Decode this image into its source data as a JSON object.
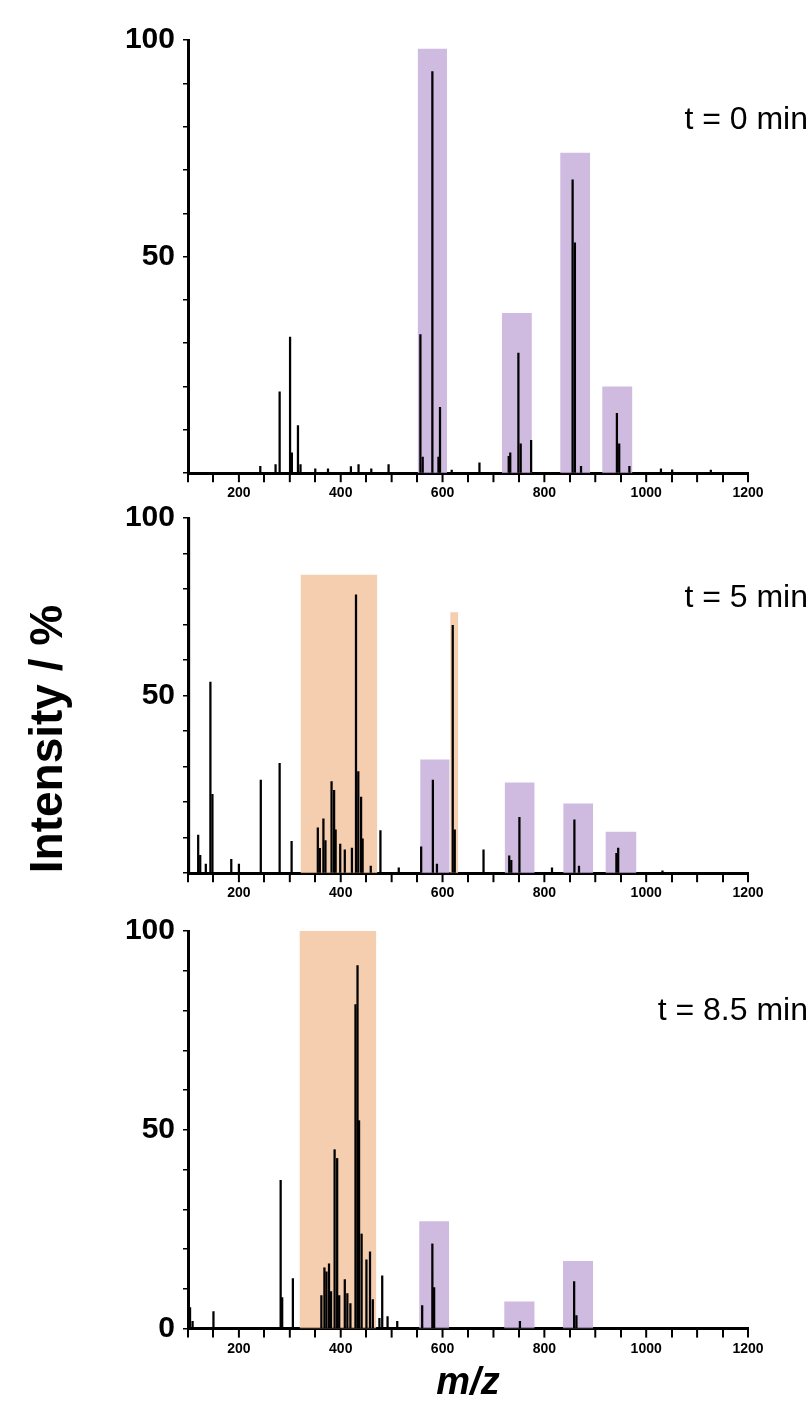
{
  "chart_data": [
    {
      "type": "bar",
      "annotations": [
        "t = 0 min"
      ],
      "xlim": [
        100,
        1200
      ],
      "ylim": [
        0,
        100
      ],
      "xticks": [
        {
          "value": 100,
          "label": null
        },
        200,
        {
          "value": 300,
          "label": null
        },
        400,
        {
          "value": 500,
          "label": null
        },
        600,
        {
          "value": 700,
          "label": null
        },
        800,
        {
          "value": 900,
          "label": null
        },
        1000,
        {
          "value": 1100,
          "label": null
        },
        1200
      ],
      "yticks": [
        {
          "value": 0,
          "label": null
        },
        {
          "value": 10,
          "label": null
        },
        {
          "value": 20,
          "label": null
        },
        {
          "value": 30,
          "label": null
        },
        {
          "value": 40,
          "label": null
        },
        50,
        {
          "value": 60,
          "label": null
        },
        {
          "value": 70,
          "label": null
        },
        {
          "value": 80,
          "label": null
        },
        {
          "value": 90,
          "label": null
        },
        100
      ],
      "series": [
        {
          "color": "#000000",
          "x": [
            242,
            272,
            280,
            300.5,
            304,
            316,
            321,
            350,
            375,
            420,
            435,
            460,
            494,
            556.5,
            561,
            580,
            592,
            595,
            618,
            672.5,
            730,
            733,
            749,
            753.5,
            774,
            855.5,
            860,
            872,
            942.5,
            947,
            967,
            1029,
            1051,
            1127
          ],
          "values": [
            1.6,
            2,
            18.8,
            31.4,
            4.7,
            11,
            2,
            1,
            1,
            1.5,
            2,
            1,
            2,
            32,
            3.7,
            92.7,
            3.7,
            15.2,
            0.7,
            2.4,
            3.9,
            4.7,
            27.7,
            6.8,
            7.6,
            67.7,
            53.2,
            1.6,
            13.8,
            6.8,
            1.6,
            1,
            0.8,
            0.7
          ]
        },
        {
          "type": "area",
          "color": "#c3a8d8",
          "x": [
            551,
            551,
            609,
            609
          ],
          "values": [
            0,
            98,
            98,
            0
          ]
        },
        {
          "type": "area",
          "color": "#c3a8d8",
          "x": [
            716.5,
            716.5,
            775.5,
            775.5
          ],
          "values": [
            0,
            37,
            37,
            0
          ]
        },
        {
          "type": "area",
          "color": "#c3a8d8",
          "x": [
            831,
            831,
            890,
            890
          ],
          "values": [
            0,
            74,
            74,
            0
          ]
        },
        {
          "type": "area",
          "color": "#c3a8d8",
          "x": [
            913.5,
            913.5,
            973,
            973
          ],
          "values": [
            0,
            20,
            20,
            0
          ]
        }
      ]
    },
    {
      "type": "bar",
      "ylabel": "Intensity / %",
      "annotations": [
        "t = 5 min"
      ],
      "xlim": [
        100,
        1200
      ],
      "ylim": [
        0,
        100
      ],
      "xticks": [
        {
          "value": 100,
          "label": null
        },
        200,
        {
          "value": 300,
          "label": null
        },
        400,
        {
          "value": 500,
          "label": null
        },
        600,
        {
          "value": 700,
          "label": null
        },
        800,
        {
          "value": 900,
          "label": null
        },
        1000,
        {
          "value": 1100,
          "label": null
        },
        1200
      ],
      "yticks": [
        {
          "value": 0,
          "label": null
        },
        {
          "value": 10,
          "label": null
        },
        {
          "value": 20,
          "label": null
        },
        {
          "value": 30,
          "label": null
        },
        {
          "value": 40,
          "label": null
        },
        50,
        {
          "value": 60,
          "label": null
        },
        {
          "value": 70,
          "label": null
        },
        {
          "value": 80,
          "label": null
        },
        {
          "value": 90,
          "label": null
        },
        100
      ],
      "series": [
        {
          "color": "#000000",
          "x": [
            102,
            120,
            124,
            135,
            144,
            148,
            185,
            200,
            243,
            280,
            303.5,
            355,
            359,
            366,
            370,
            382,
            387,
            390,
            399,
            408,
            422,
            430,
            434.5,
            440,
            443,
            459,
            478,
            514,
            558,
            581,
            589,
            620,
            624,
            680.5,
            731,
            735,
            751,
            815,
            859,
            868,
            941.5,
            945,
            1032
          ],
          "values": [
            100,
            10.7,
            5,
            2.6,
            53.8,
            22.2,
            3.9,
            2.6,
            26.2,
            30.9,
            9,
            12.8,
            7,
            15.3,
            9.2,
            25.8,
            23.3,
            12.2,
            8.2,
            6.6,
            7.1,
            78.4,
            28.6,
            21.4,
            9.7,
            2,
            12,
            1.5,
            7.4,
            26.2,
            2.6,
            69.8,
            12.2,
            6.6,
            4.9,
            3.6,
            15.7,
            1.5,
            15,
            2,
            5.6,
            7.1,
            0.7
          ]
        },
        {
          "type": "area",
          "color": "#f2c199",
          "x": [
            321,
            321,
            472,
            472
          ],
          "values": [
            0,
            84,
            84,
            0
          ]
        },
        {
          "type": "area",
          "color": "#f2c199",
          "x": [
            615,
            615,
            631,
            631
          ],
          "values": [
            0,
            73.5,
            73.5,
            0
          ]
        },
        {
          "type": "area",
          "color": "#c3a8d8",
          "x": [
            556,
            556,
            614,
            614
          ],
          "values": [
            0,
            32,
            32,
            0
          ]
        },
        {
          "type": "area",
          "color": "#c3a8d8",
          "x": [
            722,
            722,
            781,
            781
          ],
          "values": [
            0,
            25.5,
            25.5,
            0
          ]
        },
        {
          "type": "area",
          "color": "#c3a8d8",
          "x": [
            837,
            837,
            896,
            896
          ],
          "values": [
            0,
            19.6,
            19.6,
            0
          ]
        },
        {
          "type": "area",
          "color": "#c3a8d8",
          "x": [
            920,
            920,
            981,
            981
          ],
          "values": [
            0,
            11.7,
            11.7,
            0
          ]
        }
      ]
    },
    {
      "type": "bar",
      "xlabel": "m/z",
      "annotations": [
        "t = 8.5 min"
      ],
      "xlim": [
        100,
        1200
      ],
      "ylim": [
        0,
        100
      ],
      "xticks": [
        {
          "value": 100,
          "label": null
        },
        200,
        {
          "value": 300,
          "label": null
        },
        400,
        {
          "value": 500,
          "label": null
        },
        600,
        {
          "value": 700,
          "label": null
        },
        800,
        {
          "value": 900,
          "label": null
        },
        1000,
        {
          "value": 1100,
          "label": null
        },
        1200
      ],
      "yticks": [
        0,
        {
          "value": 10,
          "label": null
        },
        {
          "value": 20,
          "label": null
        },
        {
          "value": 30,
          "label": null
        },
        {
          "value": 40,
          "label": null
        },
        50,
        {
          "value": 60,
          "label": null
        },
        {
          "value": 70,
          "label": null
        },
        {
          "value": 80,
          "label": null
        },
        {
          "value": 90,
          "label": null
        },
        100
      ],
      "series": [
        {
          "color": "#000000",
          "x": [
            104,
            109,
            150,
            282,
            285,
            306,
            362,
            368,
            372,
            377,
            381,
            388,
            393,
            397,
            408,
            413,
            419,
            429,
            433,
            436,
            441,
            450.5,
            457.5,
            463,
            476,
            481.5,
            492,
            511,
            560,
            580,
            583.5,
            752,
            858.5,
            863
          ],
          "values": [
            5.3,
            1.8,
            4.3,
            37.3,
            7.8,
            12.6,
            8.3,
            15.3,
            14.3,
            16.3,
            9.3,
            45,
            42.8,
            8.3,
            12.3,
            8.8,
            6.3,
            81.5,
            91.3,
            52.3,
            23.8,
            17.3,
            19.3,
            7.3,
            2.6,
            13.3,
            3,
            1.8,
            5.8,
            21.3,
            10.3,
            1.8,
            11.8,
            3.3
          ]
        },
        {
          "type": "area",
          "color": "#f2c199",
          "x": [
            319,
            319,
            470,
            470
          ],
          "values": [
            0,
            100,
            100,
            0
          ]
        },
        {
          "type": "area",
          "color": "#c3a8d8",
          "x": [
            554,
            554,
            613,
            613
          ],
          "values": [
            0,
            27,
            27,
            0
          ]
        },
        {
          "type": "area",
          "color": "#c3a8d8",
          "x": [
            721,
            721,
            781,
            781
          ],
          "values": [
            0,
            6.8,
            6.8,
            0
          ]
        },
        {
          "type": "area",
          "color": "#c3a8d8",
          "x": [
            836.5,
            836.5,
            896,
            896
          ],
          "values": [
            0,
            17,
            17,
            0
          ]
        }
      ]
    }
  ]
}
